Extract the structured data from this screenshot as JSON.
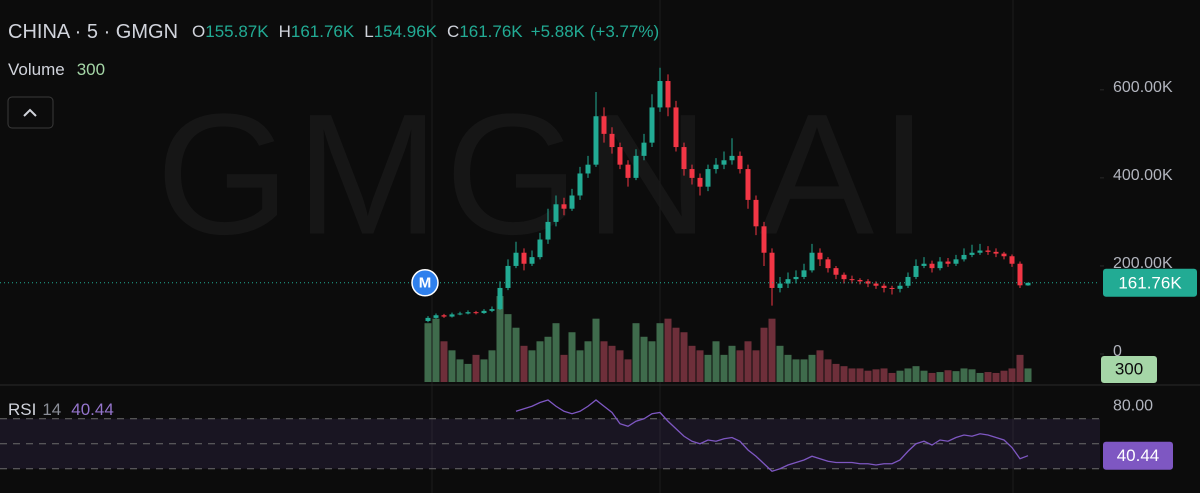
{
  "chart_data": {
    "type": "candlestick",
    "title": "CHINA · 5 · GMGN",
    "watermark": "GMGN AI",
    "marker": "M",
    "ohlc": [
      {
        "key": "O",
        "label": "155.87K"
      },
      {
        "key": "H",
        "label": "161.76K"
      },
      {
        "key": "L",
        "label": "154.96K"
      },
      {
        "key": "C",
        "label": "161.76K"
      }
    ],
    "change_label": "+5.88K (+3.77%)",
    "last_price_label": "161.76K",
    "up_color": "#22ab94",
    "down_color": "#f23645",
    "ylim": [
      0,
      670
    ],
    "yticks": [
      {
        "value": 600,
        "label": "600.00K"
      },
      {
        "value": 400,
        "label": "400.00K"
      },
      {
        "value": 200,
        "label": "200.00K"
      },
      0
    ],
    "open": [
      75,
      82,
      88,
      85,
      90,
      92,
      95,
      93,
      98,
      102,
      150,
      200,
      230,
      205,
      220,
      260,
      300,
      340,
      330,
      360,
      410,
      430,
      540,
      500,
      470,
      430,
      400,
      450,
      480,
      560,
      620,
      560,
      470,
      420,
      400,
      380,
      420,
      430,
      440,
      450,
      420,
      350,
      290,
      230,
      150,
      160,
      170,
      175,
      190,
      230,
      215,
      195,
      180,
      170,
      168,
      165,
      160,
      155,
      150,
      148,
      155,
      175,
      200,
      205,
      195,
      210,
      205,
      215,
      225,
      230,
      235,
      232,
      228,
      222,
      205,
      155.87
    ],
    "high": [
      86,
      92,
      91,
      94,
      96,
      99,
      98,
      102,
      108,
      165,
      215,
      255,
      240,
      235,
      275,
      330,
      360,
      355,
      375,
      425,
      450,
      595,
      560,
      515,
      480,
      440,
      465,
      500,
      590,
      650,
      635,
      575,
      480,
      430,
      410,
      430,
      445,
      460,
      490,
      460,
      430,
      360,
      300,
      240,
      175,
      185,
      190,
      205,
      250,
      240,
      220,
      200,
      185,
      178,
      172,
      170,
      165,
      160,
      155,
      162,
      185,
      215,
      220,
      212,
      220,
      218,
      225,
      240,
      248,
      250,
      245,
      240,
      232,
      226,
      210,
      161.76
    ],
    "low": [
      72,
      80,
      82,
      83,
      88,
      90,
      90,
      91,
      95,
      100,
      145,
      195,
      190,
      200,
      215,
      250,
      290,
      315,
      325,
      350,
      400,
      425,
      480,
      455,
      420,
      380,
      395,
      440,
      470,
      550,
      540,
      460,
      405,
      385,
      360,
      370,
      410,
      420,
      430,
      410,
      330,
      270,
      200,
      110,
      140,
      150,
      160,
      170,
      185,
      200,
      185,
      170,
      160,
      160,
      158,
      152,
      148,
      140,
      135,
      140,
      150,
      170,
      195,
      185,
      190,
      198,
      200,
      210,
      220,
      225,
      225,
      220,
      215,
      198,
      150,
      154.96
    ],
    "close": [
      82,
      88,
      85,
      90,
      92,
      95,
      93,
      98,
      102,
      150,
      200,
      230,
      205,
      220,
      260,
      300,
      340,
      330,
      360,
      410,
      430,
      540,
      500,
      470,
      430,
      400,
      450,
      480,
      560,
      620,
      560,
      470,
      420,
      400,
      380,
      420,
      430,
      440,
      450,
      420,
      350,
      290,
      230,
      150,
      160,
      170,
      175,
      190,
      230,
      215,
      195,
      180,
      170,
      168,
      165,
      160,
      155,
      150,
      148,
      155,
      175,
      200,
      205,
      195,
      210,
      205,
      215,
      225,
      230,
      235,
      232,
      228,
      222,
      205,
      156,
      161.76
    ],
    "volume": {
      "name": "Volume",
      "ylim": [
        0,
        2100
      ],
      "up_color": "#3f6b4c",
      "down_color": "#6e2f3a",
      "badge_color": "#a5d6a7",
      "values": [
        1300,
        1400,
        900,
        700,
        500,
        400,
        600,
        500,
        700,
        1900,
        1500,
        1200,
        800,
        700,
        900,
        1000,
        1300,
        600,
        1100,
        700,
        900,
        1400,
        900,
        800,
        700,
        500,
        1300,
        1000,
        900,
        1300,
        1400,
        1200,
        1100,
        800,
        700,
        600,
        900,
        600,
        800,
        700,
        900,
        700,
        1200,
        1400,
        800,
        600,
        500,
        500,
        600,
        700,
        500,
        400,
        350,
        300,
        300,
        250,
        280,
        300,
        200,
        250,
        300,
        350,
        250,
        200,
        220,
        260,
        240,
        300,
        280,
        200,
        220,
        200,
        250,
        300,
        600,
        300
      ]
    },
    "rsi": {
      "name": "RSI",
      "period": 14,
      "color": "#7e57c2",
      "ylim": [
        13,
        97
      ],
      "yticks": [
        {
          "value": 80,
          "label": "80.00"
        }
      ],
      "band_lines": [
        70,
        50,
        30
      ],
      "values": [
        null,
        null,
        null,
        null,
        null,
        null,
        null,
        null,
        null,
        null,
        null,
        76,
        78,
        80,
        83,
        85,
        80,
        76,
        74,
        76,
        80,
        85,
        80,
        75,
        66,
        64,
        68,
        70,
        74,
        75,
        68,
        62,
        56,
        52,
        50,
        53,
        52,
        54,
        55,
        52,
        45,
        40,
        34,
        28,
        30,
        33,
        35,
        37,
        40,
        38,
        36,
        35,
        35,
        35,
        34,
        34,
        33,
        34,
        34,
        37,
        44,
        50,
        52,
        49,
        53,
        52,
        55,
        57,
        56,
        58,
        57,
        55,
        53,
        47,
        38,
        40.44
      ]
    }
  }
}
